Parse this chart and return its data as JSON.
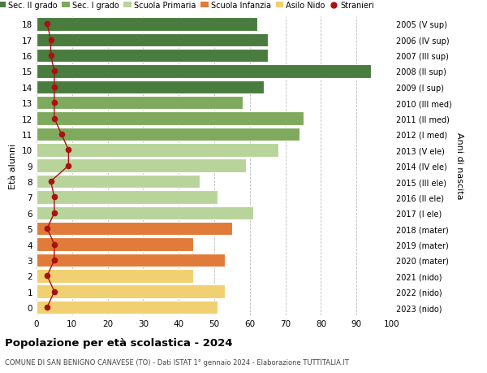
{
  "ages": [
    18,
    17,
    16,
    15,
    14,
    13,
    12,
    11,
    10,
    9,
    8,
    7,
    6,
    5,
    4,
    3,
    2,
    1,
    0
  ],
  "bar_values": [
    62,
    65,
    65,
    94,
    64,
    58,
    75,
    74,
    68,
    59,
    46,
    51,
    61,
    55,
    44,
    53,
    44,
    53,
    51
  ],
  "stranieri": [
    3,
    4,
    4,
    5,
    5,
    5,
    5,
    7,
    9,
    9,
    4,
    5,
    5,
    3,
    5,
    5,
    3,
    5,
    3
  ],
  "right_labels": [
    "2005 (V sup)",
    "2006 (IV sup)",
    "2007 (III sup)",
    "2008 (II sup)",
    "2009 (I sup)",
    "2010 (III med)",
    "2011 (II med)",
    "2012 (I med)",
    "2013 (V ele)",
    "2014 (IV ele)",
    "2015 (III ele)",
    "2016 (II ele)",
    "2017 (I ele)",
    "2018 (mater)",
    "2019 (mater)",
    "2020 (mater)",
    "2021 (nido)",
    "2022 (nido)",
    "2023 (nido)"
  ],
  "bar_colors": [
    "#4a7c3f",
    "#4a7c3f",
    "#4a7c3f",
    "#4a7c3f",
    "#4a7c3f",
    "#7faa5e",
    "#7faa5e",
    "#7faa5e",
    "#b8d49a",
    "#b8d49a",
    "#b8d49a",
    "#b8d49a",
    "#b8d49a",
    "#e07b39",
    "#e07b39",
    "#e07b39",
    "#f0d070",
    "#f0d070",
    "#f0d070"
  ],
  "legend_labels": [
    "Sec. II grado",
    "Sec. I grado",
    "Scuola Primaria",
    "Scuola Infanzia",
    "Asilo Nido",
    "Stranieri"
  ],
  "legend_colors": [
    "#4a7c3f",
    "#7faa5e",
    "#b8d49a",
    "#e07b39",
    "#f0d070",
    "#cc0000"
  ],
  "ylabel": "Età alunni",
  "ylabel_right": "Anni di nascita",
  "title": "Popolazione per età scolastica - 2024",
  "subtitle": "COMUNE DI SAN BENIGNO CANAVESE (TO) - Dati ISTAT 1° gennaio 2024 - Elaborazione TUTTITALIA.IT",
  "xlim": [
    0,
    100
  ],
  "xticks": [
    0,
    10,
    20,
    30,
    40,
    50,
    60,
    70,
    80,
    90,
    100
  ],
  "bg_color": "#ffffff",
  "grid_color": "#bbbbbb",
  "stranieri_color": "#aa1111"
}
